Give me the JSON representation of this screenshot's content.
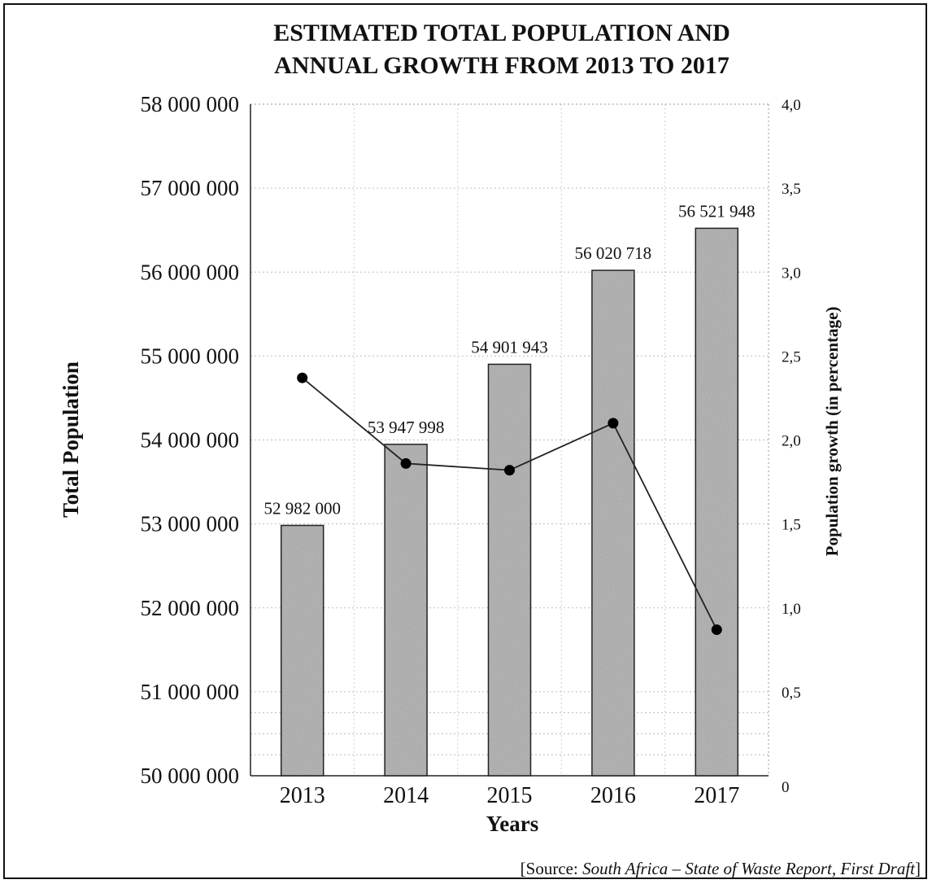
{
  "chart_data": {
    "type": "bar",
    "title_lines": [
      "ESTIMATED TOTAL POPULATION AND",
      "ANNUAL GROWTH FROM 2013 TO 2017"
    ],
    "categories": [
      "2013",
      "2014",
      "2015",
      "2016",
      "2017"
    ],
    "xlabel": "Years",
    "ylabel": "Total Population",
    "ylabel_right": "Population growth (in percentage)",
    "ylim": [
      50000000,
      58000000
    ],
    "ylim_right": [
      0,
      4.0
    ],
    "yticks": [
      "50 000 000",
      "51 000 000",
      "52 000 000",
      "53 000 000",
      "54 000 000",
      "55 000 000",
      "56 000 000",
      "57 000 000",
      "58 000 000"
    ],
    "yticks_right": [
      "0",
      "0,5",
      "1,0",
      "1,5",
      "2,0",
      "2,5",
      "3,0",
      "3,5",
      "4,0"
    ],
    "grid": true,
    "series": [
      {
        "kind": "bar",
        "values": [
          52982000,
          53947998,
          54901943,
          56020718,
          56521948
        ],
        "labels": [
          "52 982 000",
          "53 947 998",
          "54 901 943",
          "56 020 718",
          "56 521 948"
        ]
      },
      {
        "kind": "line",
        "axis": "right",
        "values": [
          2.37,
          1.86,
          1.82,
          2.1,
          0.87
        ]
      }
    ],
    "source": {
      "prefix": "[Source: ",
      "italic": "South Africa – State of Waste Report, First Draft",
      "suffix": "]"
    }
  }
}
